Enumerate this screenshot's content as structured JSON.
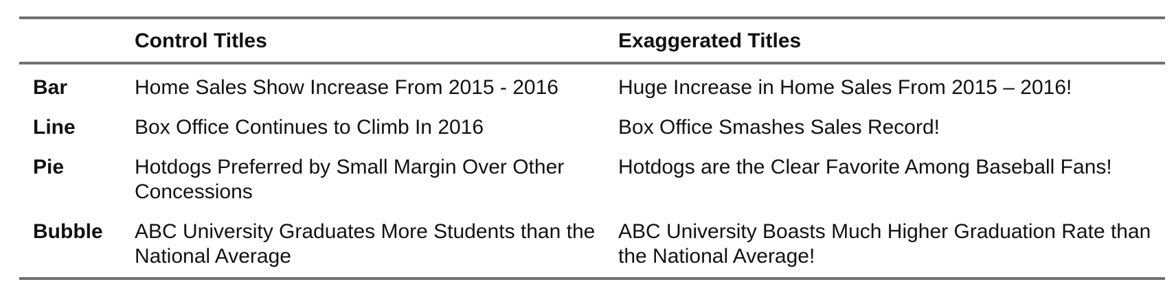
{
  "table": {
    "headers": [
      "",
      "Control Titles",
      "Exaggerated Titles"
    ],
    "rows": [
      {
        "label": "Bar",
        "control": "Home Sales Show Increase From 2015 - 2016",
        "exaggerated": "Huge Increase in Home Sales From 2015 – 2016!"
      },
      {
        "label": "Line",
        "control": "Box Office Continues to Climb In 2016",
        "exaggerated": "Box Office Smashes Sales Record!"
      },
      {
        "label": "Pie",
        "control": "Hotdogs Preferred by Small Margin Over Other Concessions",
        "exaggerated": "Hotdogs are the Clear Favorite Among Baseball Fans!"
      },
      {
        "label": "Bubble",
        "control": "ABC University Graduates More Students than the National Average",
        "exaggerated": "ABC University Boasts Much Higher Graduation Rate than the National Average!"
      }
    ]
  }
}
